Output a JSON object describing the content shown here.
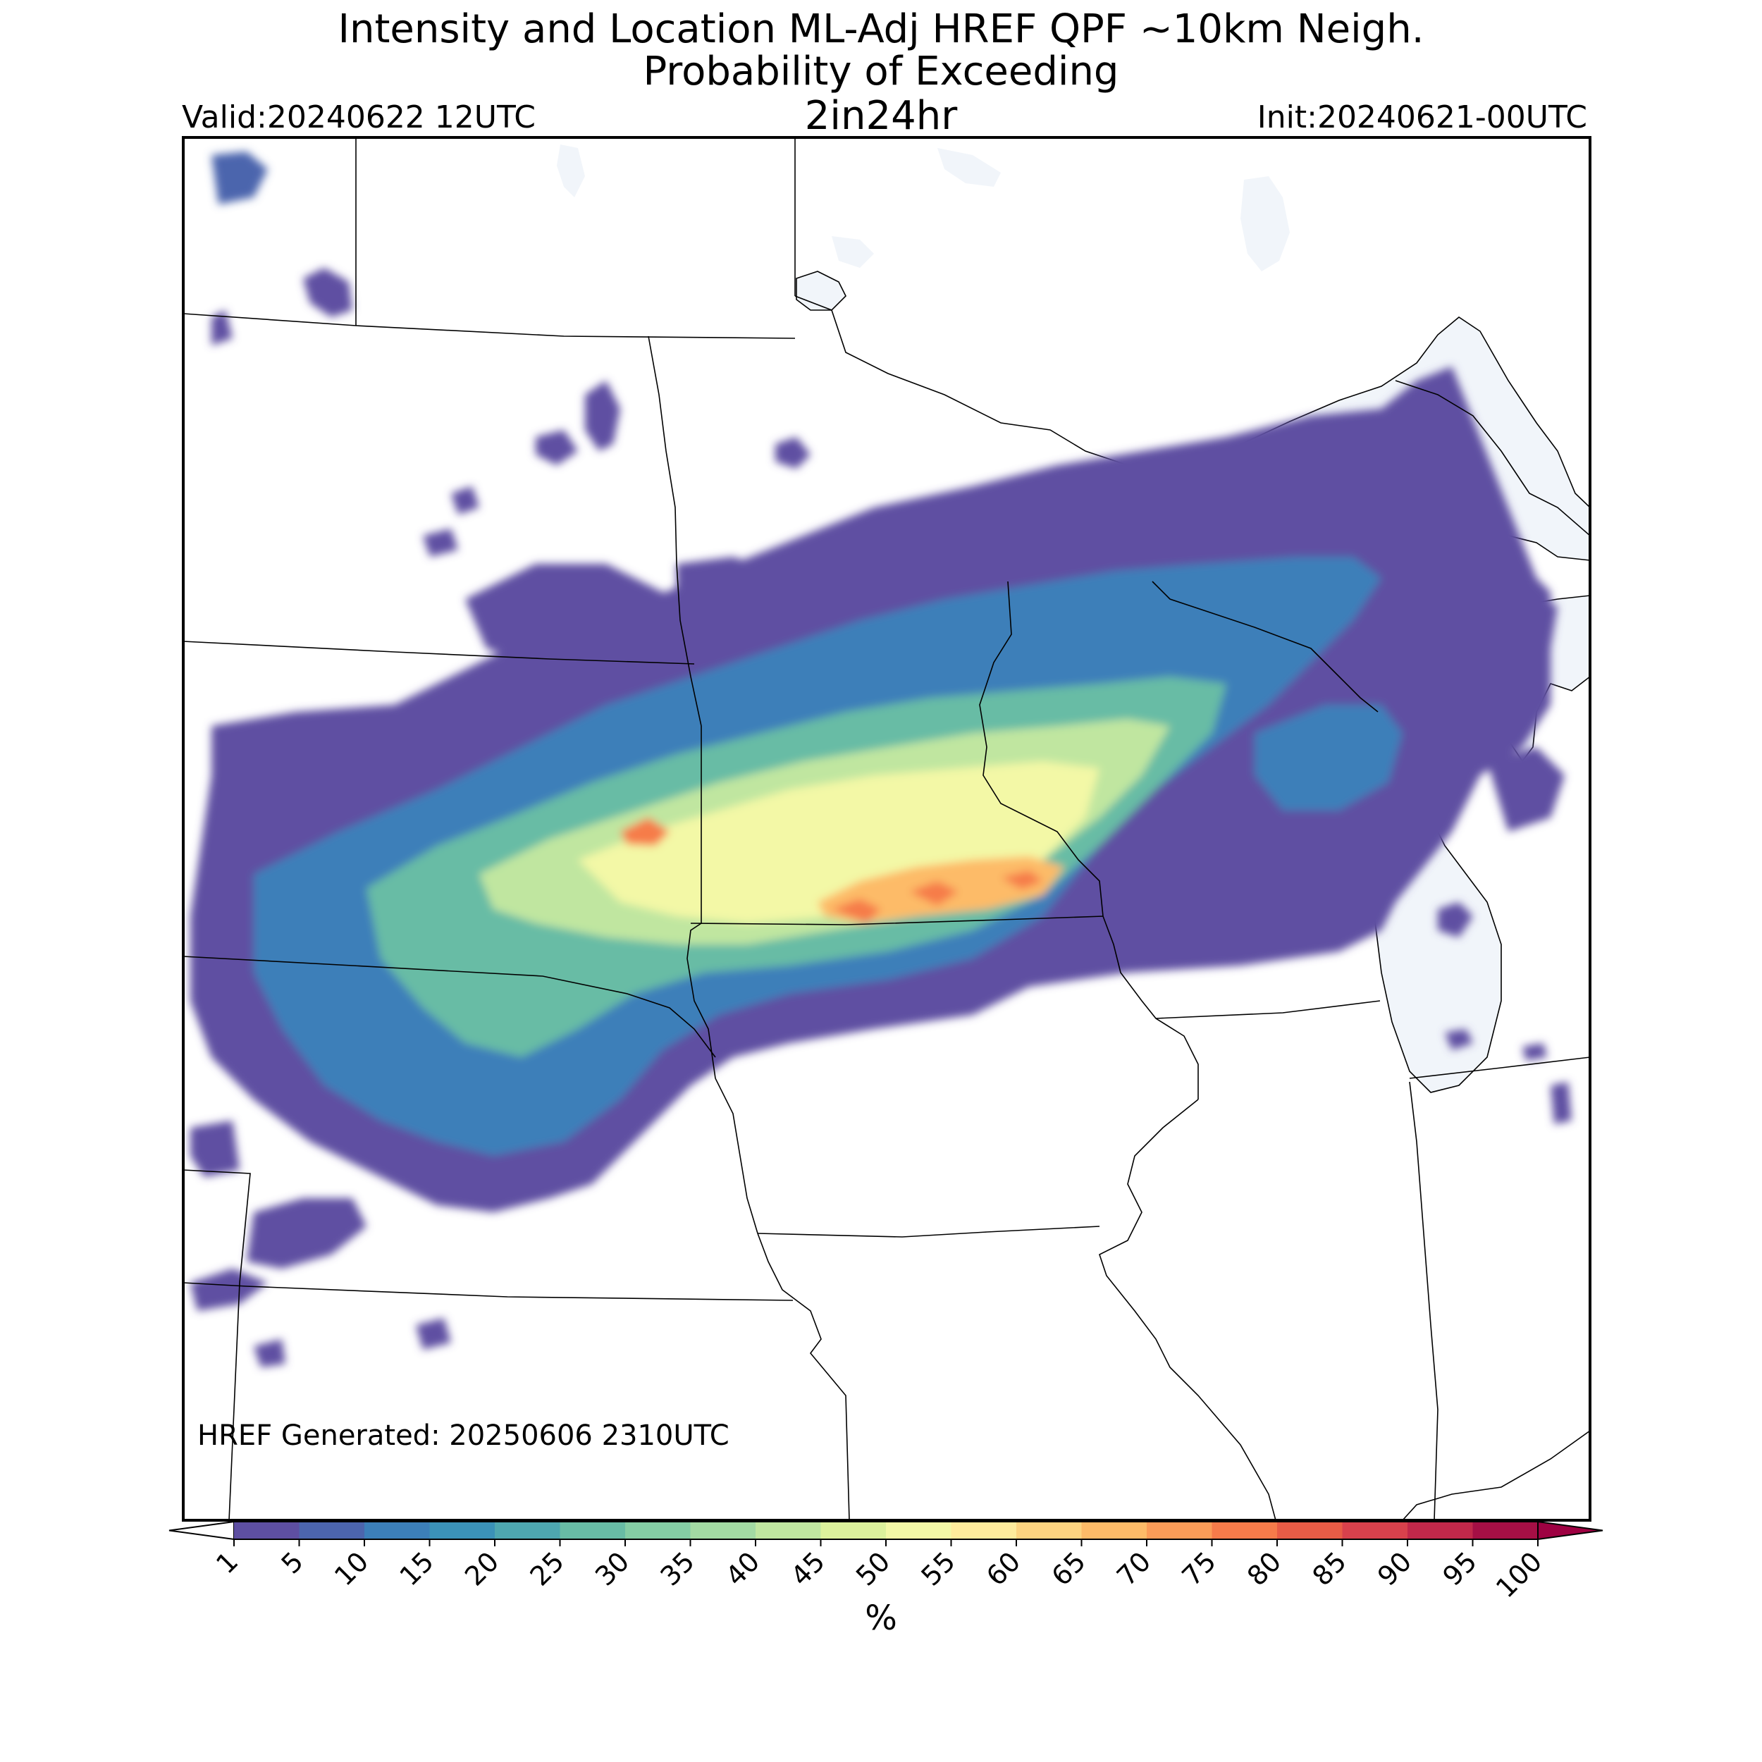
{
  "header": {
    "title_line1": "Intensity and Location ML-Adj HREF QPF ~10km Neigh.",
    "title_line2": "Probability of Exceeding",
    "valid": "Valid:20240622 12UTC",
    "threshold": "2in24hr",
    "init": "Init:20240621-00UTC"
  },
  "map": {
    "generated_note": "HREF Generated: 20250606 2310UTC",
    "water_color": "#f1f5fa",
    "border_color": "#000000"
  },
  "colorbar": {
    "unit_label": "%",
    "ticks": [
      "1",
      "5",
      "10",
      "15",
      "20",
      "25",
      "30",
      "35",
      "40",
      "45",
      "50",
      "55",
      "60",
      "65",
      "70",
      "75",
      "80",
      "85",
      "90",
      "95",
      "100"
    ],
    "colors": [
      "#5e4fa2",
      "#4c65ad",
      "#3c7fb9",
      "#3b92b8",
      "#4ea7b0",
      "#68bca5",
      "#84cda4",
      "#a3daa3",
      "#c0e6a0",
      "#dcf19c",
      "#f3f8a6",
      "#feeb9c",
      "#fdd480",
      "#fdbb68",
      "#fb9c58",
      "#f67b4a",
      "#e85c46",
      "#d8414c",
      "#c1284a",
      "#a50f45",
      "#9e0142"
    ]
  }
}
